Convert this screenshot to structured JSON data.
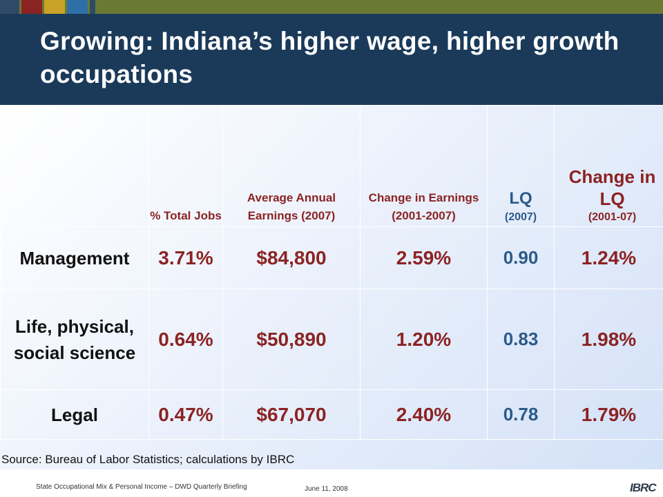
{
  "slide": {
    "title": "Growing: Indiana’s higher wage, higher growth occupations",
    "source": "Source: Bureau of Labor Statistics; calculations by IBRC"
  },
  "table": {
    "headers": {
      "pct_jobs": "% Total Jobs",
      "earnings": "Average Annual Earnings (2007)",
      "change_earnings": "Change in Earnings (2001-2007)",
      "lq_main": "LQ",
      "lq_sub": "(2007)",
      "change_lq_main": "Change in LQ",
      "change_lq_sub": "(2001-07)"
    },
    "rows": [
      {
        "occupation": "Management",
        "pct_jobs": "3.71%",
        "earnings": "$84,800",
        "change_earnings": "2.59%",
        "lq": "0.90",
        "change_lq": "1.24%"
      },
      {
        "occupation": "Life, physical, social science",
        "pct_jobs": "0.64%",
        "earnings": "$50,890",
        "change_earnings": "1.20%",
        "lq": "0.83",
        "change_lq": "1.98%"
      },
      {
        "occupation": "Legal",
        "pct_jobs": "0.47%",
        "earnings": "$67,070",
        "change_earnings": "2.40%",
        "lq": "0.78",
        "change_lq": "1.79%"
      }
    ]
  },
  "footer": {
    "left": "State Occupational Mix & Personal Income – DWD Quarterly Briefing",
    "date": "June 11, 2008",
    "logo": "IBRC"
  },
  "colors": {
    "header_bg": "#1b3a5a",
    "accent_red": "#8b2323",
    "accent_blue": "#2b5a8a",
    "top_bar": "#6b7a33"
  }
}
